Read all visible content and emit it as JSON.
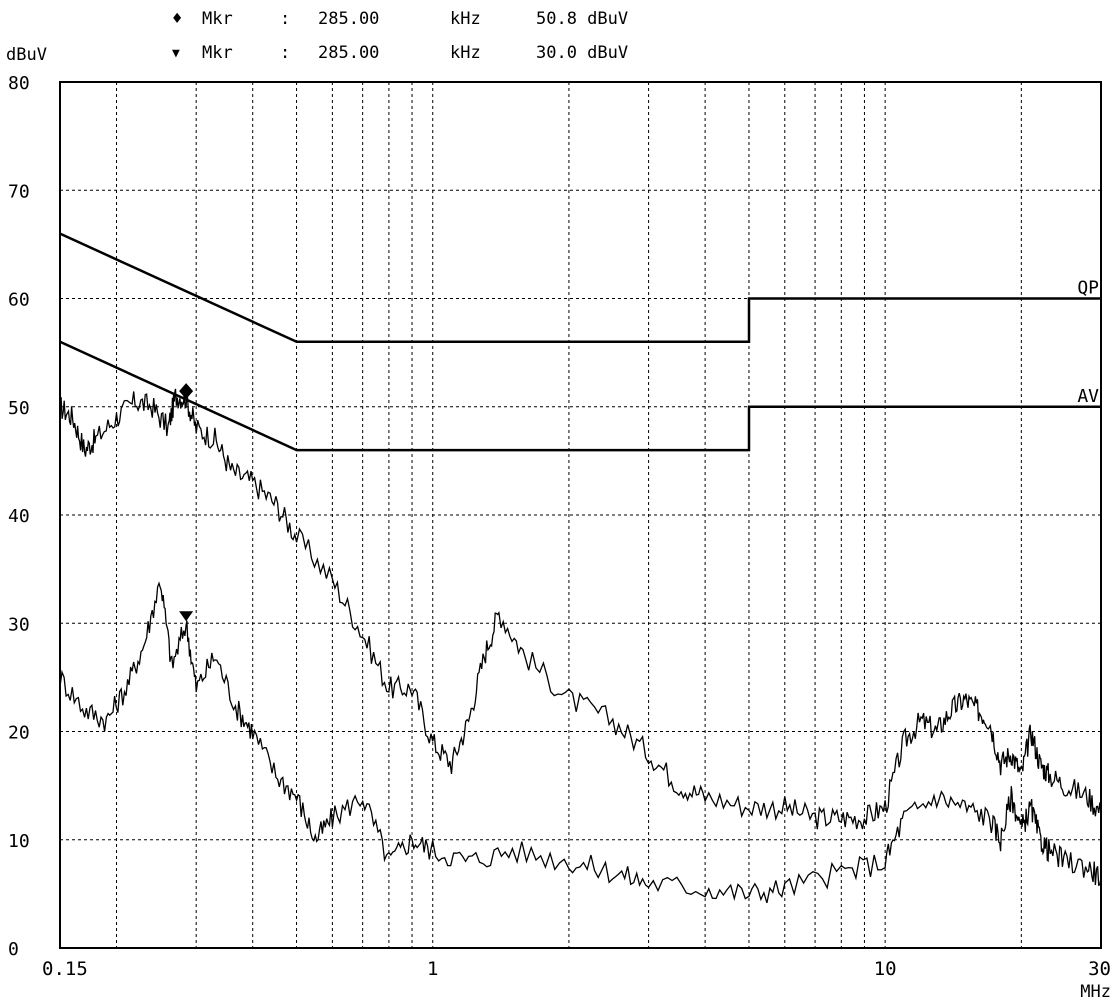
{
  "markers": [
    {
      "symbol": "♦",
      "label": "Mkr",
      "sep": ":",
      "freq": "285.00",
      "freq_unit": "kHz",
      "level": "50.8 dBuV"
    },
    {
      "symbol": "▼",
      "label": "Mkr",
      "sep": ":",
      "freq": "285.00",
      "freq_unit": "kHz",
      "level": "30.0 dBuV"
    }
  ],
  "chart_data": {
    "type": "line",
    "ylabel": "dBuV",
    "xlabel": "MHz",
    "xscale": "log",
    "xlim": [
      0.15,
      30
    ],
    "ylim": [
      0,
      80
    ],
    "grid": true,
    "y_ticks": [
      0,
      10,
      20,
      30,
      40,
      50,
      60,
      70,
      80
    ],
    "x_ticks": [
      {
        "value": 0.15,
        "label": "0.15"
      },
      {
        "value": 1,
        "label": "1"
      },
      {
        "value": 10,
        "label": "10"
      },
      {
        "value": 30,
        "label": "30"
      }
    ],
    "limit_lines": [
      {
        "name": "QP",
        "points": [
          [
            0.15,
            66
          ],
          [
            0.5,
            56
          ],
          [
            5,
            56
          ],
          [
            5,
            60
          ],
          [
            30,
            60
          ]
        ]
      },
      {
        "name": "AV",
        "points": [
          [
            0.15,
            56
          ],
          [
            0.5,
            46
          ],
          [
            5,
            46
          ],
          [
            5,
            50
          ],
          [
            30,
            50
          ]
        ]
      }
    ],
    "series": [
      {
        "values": [
          [
            0.15,
            50
          ],
          [
            0.16,
            49
          ],
          [
            0.17,
            46
          ],
          [
            0.18,
            47
          ],
          [
            0.2,
            49
          ],
          [
            0.22,
            50.5
          ],
          [
            0.24,
            50
          ],
          [
            0.26,
            48
          ],
          [
            0.27,
            51
          ],
          [
            0.285,
            50.8
          ],
          [
            0.3,
            48
          ],
          [
            0.33,
            47
          ],
          [
            0.36,
            44
          ],
          [
            0.4,
            43
          ],
          [
            0.45,
            41
          ],
          [
            0.5,
            38
          ],
          [
            0.6,
            34
          ],
          [
            0.7,
            29
          ],
          [
            0.8,
            24
          ],
          [
            0.9,
            24
          ],
          [
            1,
            19
          ],
          [
            1.1,
            17
          ],
          [
            1.2,
            21
          ],
          [
            1.3,
            27
          ],
          [
            1.4,
            31
          ],
          [
            1.6,
            27
          ],
          [
            2,
            23
          ],
          [
            2.5,
            21
          ],
          [
            3,
            18
          ],
          [
            3.5,
            15
          ],
          [
            4,
            14
          ],
          [
            5,
            13
          ],
          [
            6,
            13
          ],
          [
            7,
            12
          ],
          [
            8,
            12
          ],
          [
            9,
            12
          ],
          [
            10,
            13
          ],
          [
            11,
            19
          ],
          [
            12,
            21
          ],
          [
            13,
            20
          ],
          [
            14,
            22
          ],
          [
            15,
            23
          ],
          [
            16,
            22
          ],
          [
            17,
            21
          ],
          [
            18,
            17
          ],
          [
            19,
            18
          ],
          [
            20,
            16
          ],
          [
            21,
            20
          ],
          [
            22,
            17
          ],
          [
            23,
            16
          ],
          [
            25,
            15
          ],
          [
            28,
            14
          ],
          [
            30,
            12.5
          ]
        ]
      },
      {
        "values": [
          [
            0.15,
            25
          ],
          [
            0.17,
            22
          ],
          [
            0.19,
            21
          ],
          [
            0.21,
            24
          ],
          [
            0.23,
            28
          ],
          [
            0.25,
            34
          ],
          [
            0.265,
            26
          ],
          [
            0.285,
            30
          ],
          [
            0.3,
            24
          ],
          [
            0.33,
            27
          ],
          [
            0.37,
            22
          ],
          [
            0.4,
            20
          ],
          [
            0.45,
            16
          ],
          [
            0.5,
            14
          ],
          [
            0.55,
            10
          ],
          [
            0.6,
            12
          ],
          [
            0.7,
            14
          ],
          [
            0.8,
            8
          ],
          [
            0.9,
            10
          ],
          [
            1,
            9
          ],
          [
            1.2,
            8
          ],
          [
            1.5,
            9
          ],
          [
            2,
            8
          ],
          [
            2.5,
            7
          ],
          [
            3,
            6
          ],
          [
            4,
            5.5
          ],
          [
            5,
            5
          ],
          [
            6,
            5.5
          ],
          [
            8,
            7
          ],
          [
            10,
            8
          ],
          [
            11,
            12
          ],
          [
            13,
            14
          ],
          [
            15,
            13
          ],
          [
            17,
            12
          ],
          [
            18,
            10
          ],
          [
            19,
            14
          ],
          [
            20,
            11
          ],
          [
            21,
            13
          ],
          [
            22,
            10
          ],
          [
            23,
            9
          ],
          [
            25,
            8
          ],
          [
            28,
            7.5
          ],
          [
            30,
            6.5
          ]
        ]
      }
    ],
    "series_labels": [
      "QP",
      "AV"
    ]
  }
}
